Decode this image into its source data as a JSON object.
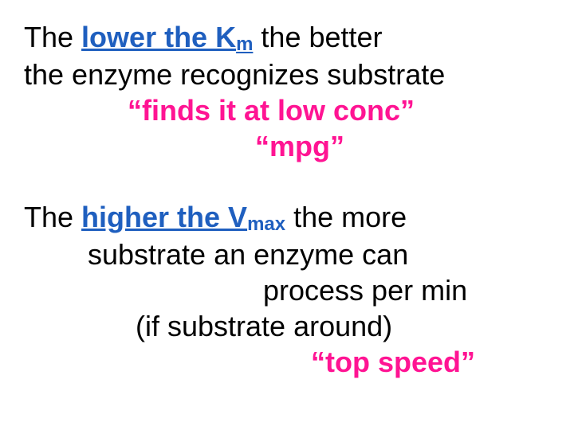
{
  "colors": {
    "text": "#000000",
    "emphasis_blue": "#1f5fbf",
    "emphasis_pink": "#ff1493",
    "background": "#ffffff"
  },
  "typography": {
    "family": "Comic Sans MS",
    "base_size_pt": 36,
    "subscript_size_pt": 24,
    "line_height": 1.25
  },
  "block1": {
    "l1_pre": "The ",
    "l1_em": "lower the K",
    "l1_sub": "m",
    "l1_post": " the better",
    "l2": "the enzyme recognizes substrate",
    "l3": "“finds it at low conc”",
    "l4": "“mpg”"
  },
  "block2": {
    "l1_pre": "The ",
    "l1_em": "higher the V",
    "l1_sub": "max",
    "l1_post": " the more",
    "l2": "substrate an enzyme can",
    "l3": "process per min",
    "l4": "(if substrate around)",
    "l5": "“top speed”"
  }
}
